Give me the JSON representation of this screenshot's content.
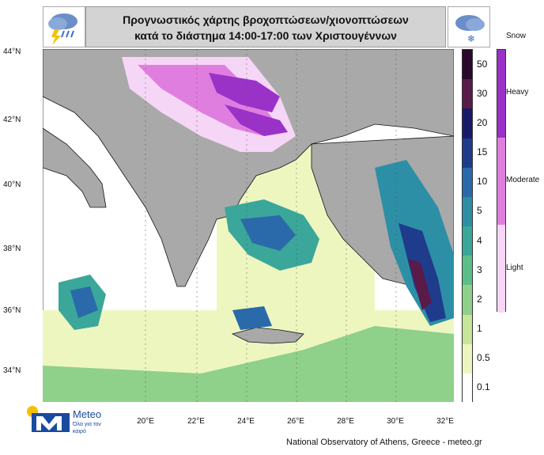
{
  "header": {
    "title_line1": "Προγνωστικός χάρτης βροχοπτώσεων/χιονοπτώσεων",
    "title_line2": "κατά το διάστημα 14:00-17:00 των Χριστουγέννων",
    "rain_icon": "rain-thunder-cloud-icon",
    "snow_icon": "snow-cloud-icon"
  },
  "snow_legend": {
    "title": "Snow",
    "levels": [
      "Heavy",
      "Moderate",
      "Light"
    ],
    "colors": [
      "#9a32c8",
      "#e07ee0",
      "#f6d6f6"
    ]
  },
  "rain_legend": {
    "labels": [
      "50",
      "30",
      "20",
      "15",
      "10",
      "5",
      "4",
      "3",
      "2",
      "1",
      "0.5",
      "0.1"
    ],
    "colors": [
      "#2a0a2a",
      "#5a1a4a",
      "#1a1a6a",
      "#1f3c8c",
      "#2a6aaa",
      "#2c8fa6",
      "#3aa79a",
      "#5cbf8a",
      "#8fd18a",
      "#c7e69a",
      "#eef6c0",
      "#ffffff"
    ]
  },
  "map": {
    "lat_labels": [
      "44°N",
      "42°N",
      "40°N",
      "38°N",
      "36°N",
      "34°N"
    ],
    "lon_labels": [
      "20°E",
      "22°E",
      "24°E",
      "26°E",
      "28°E",
      "30°E",
      "32°E"
    ],
    "land_color": "#a9a9a9",
    "sea_color": "#ffffff"
  },
  "branding": {
    "logo_text": "Meteo",
    "tagline": "Όλα για τον καιρό",
    "footer": "National Observatory of Athens, Greece - meteo.gr"
  }
}
